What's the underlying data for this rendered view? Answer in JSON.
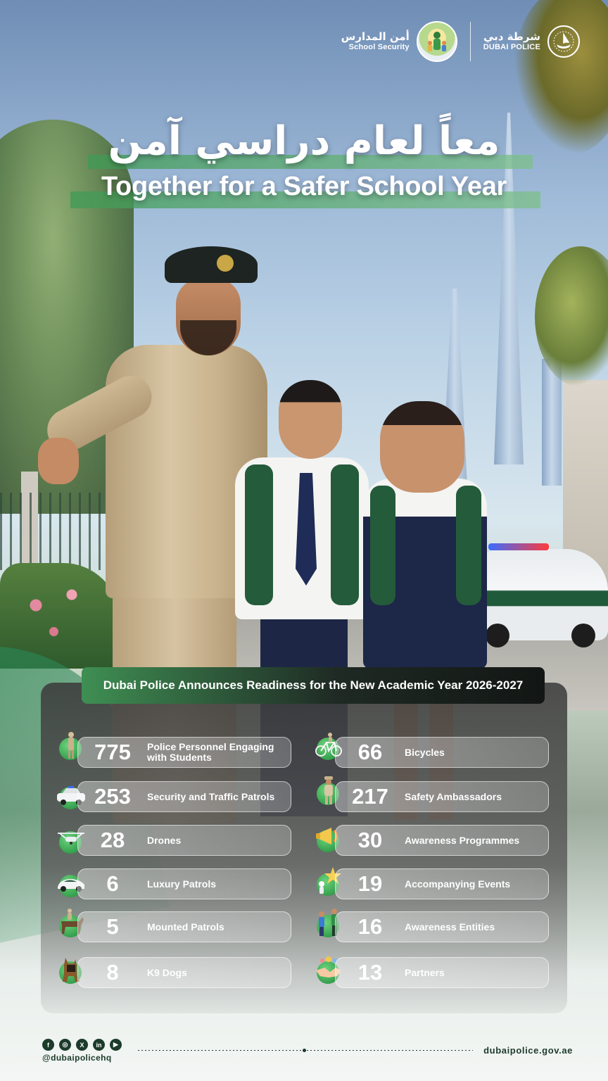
{
  "header": {
    "school_security": {
      "ar": "أمن المدارس",
      "en": "School Security"
    },
    "police": {
      "ar": "شرطة دبي",
      "en": "DUBAI POLICE"
    }
  },
  "titles": {
    "ar": "معاً لعام دراسي آمن",
    "en": "Together for a Safer School Year"
  },
  "panel": {
    "heading": "Dubai Police Announces Readiness for the New Academic Year 2026-2027",
    "left": [
      {
        "value": "775",
        "label_1": "Police Personnel Engaging",
        "label_2": "with Students",
        "icon": "police-officer-icon"
      },
      {
        "value": "253",
        "label": "Security and Traffic Patrols",
        "icon": "patrol-car-icon"
      },
      {
        "value": "28",
        "label": "Drones",
        "icon": "drone-icon"
      },
      {
        "value": "6",
        "label": "Luxury Patrols",
        "icon": "luxury-car-icon"
      },
      {
        "value": "5",
        "label": "Mounted Patrols",
        "icon": "horse-rider-icon"
      },
      {
        "value": "8",
        "label": "K9 Dogs",
        "icon": "k9-dog-icon"
      }
    ],
    "right": [
      {
        "value": "66",
        "label": "Bicycles",
        "icon": "bicycle-icon"
      },
      {
        "value": "217",
        "label": "Safety Ambassadors",
        "icon": "ambassador-icon"
      },
      {
        "value": "30",
        "label": "Awareness Programmes",
        "icon": "megaphone-icon"
      },
      {
        "value": "19",
        "label": "Accompanying Events",
        "icon": "star-event-icon"
      },
      {
        "value": "16",
        "label": "Awareness Entities",
        "icon": "people-icon"
      },
      {
        "value": "13",
        "label": "Partners",
        "icon": "handshake-icon"
      }
    ]
  },
  "footer": {
    "social": [
      "f",
      "◎",
      "X",
      "in",
      "▶"
    ],
    "handle": "@dubaipolicehq",
    "website": "dubaipolice.gov.ae"
  },
  "colors": {
    "accent_green": "#2f8f47",
    "dark_green": "#1c3b2b",
    "white": "#ffffff"
  }
}
